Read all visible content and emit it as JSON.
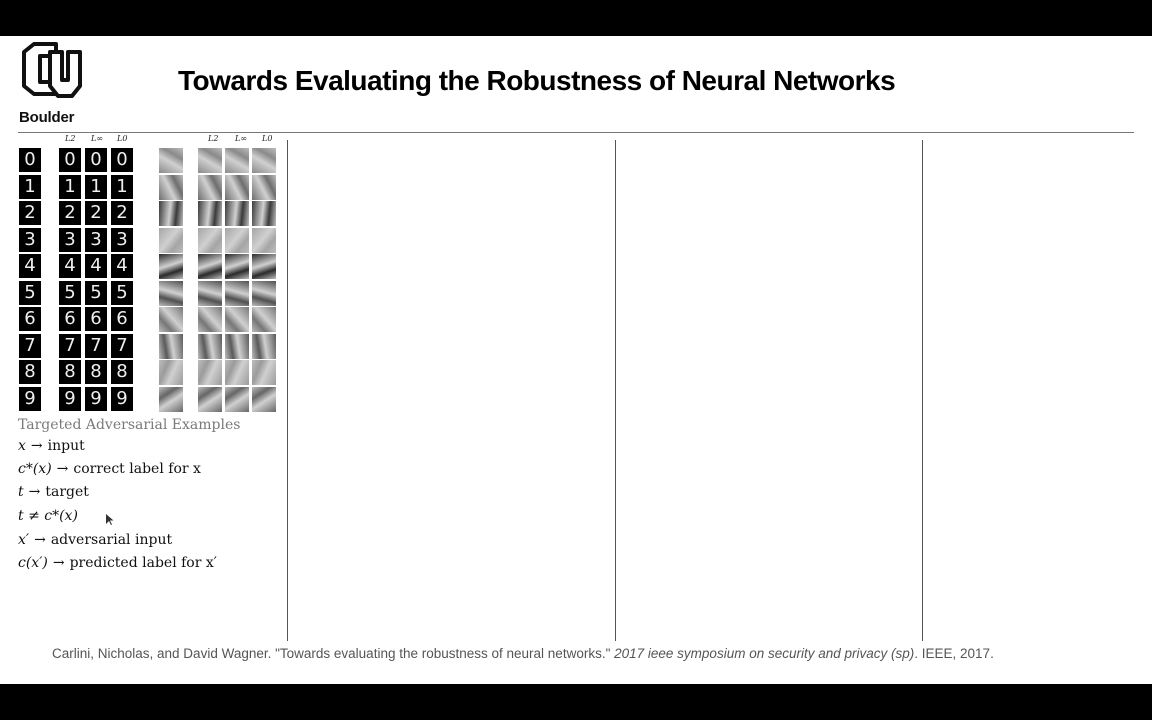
{
  "logo": {
    "name": "cu-logo-icon",
    "text": "Boulder"
  },
  "title": "Towards Evaluating the Robustness of Neural Networks",
  "figure": {
    "mnist_digits": [
      "0",
      "1",
      "2",
      "3",
      "4",
      "5",
      "6",
      "7",
      "8",
      "9"
    ],
    "mnist_col_headers": [
      "L2",
      "L∞",
      "L0"
    ],
    "cifar_col_headers": [
      "L2",
      "L∞",
      "L0"
    ]
  },
  "notes": {
    "heading": "Targeted Adversarial Examples",
    "lines": [
      {
        "lhs": "x",
        "rel": "→",
        "rhs": "input"
      },
      {
        "lhs": "c*(x)",
        "rel": "→",
        "rhs": "correct label for x"
      },
      {
        "lhs": "t",
        "rel": "→",
        "rhs": "target"
      },
      {
        "lhs": "t ≠ c*(x)",
        "rel": "",
        "rhs": ""
      },
      {
        "lhs": "x′",
        "rel": "→",
        "rhs": "adversarial input"
      },
      {
        "lhs": "c(x′)",
        "rel": "→",
        "rhs": "predicted label for x′"
      }
    ]
  },
  "citation": {
    "prefix": "Carlini, Nicholas, and David Wagner. \"Towards evaluating the robustness of neural networks.\" ",
    "venue": "2017 ieee symposium on security and privacy (sp)",
    "suffix": ". IEEE, 2017."
  }
}
